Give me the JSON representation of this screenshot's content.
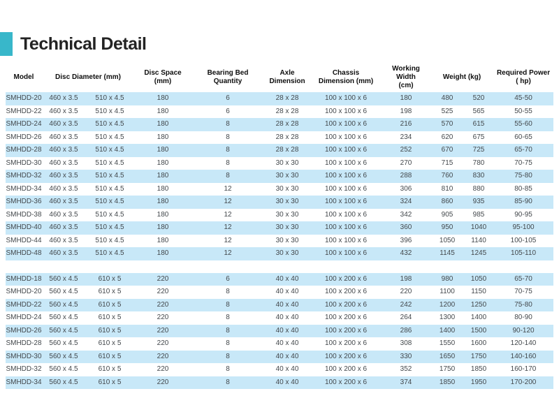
{
  "title": "Technical Detail",
  "colors": {
    "accent": "#38b7ca",
    "stripe": "#c8e8f8",
    "cell_text": "#43484c",
    "header_text": "#0d0d0d"
  },
  "table": {
    "headers": {
      "model": [
        "Model"
      ],
      "disc_diameter": [
        "Disc Diameter (mm)"
      ],
      "disc_space": [
        "Disc Space",
        "(mm)"
      ],
      "bearing_bed_quantity": [
        "Bearing Bed Quantity"
      ],
      "axle_dimension": [
        "Axle",
        "Dimension"
      ],
      "chassis_dimension": [
        "Chassis",
        "Dimension (mm)"
      ],
      "working_width": [
        "Working Width",
        "(cm)"
      ],
      "weight": [
        "Weight (kg)"
      ],
      "required_power": [
        "Required Power",
        "( hp)"
      ]
    },
    "fields": [
      "model",
      "disc_diameter_1",
      "disc_diameter_2",
      "disc_space",
      "bearing_bed_quantity",
      "axle_dimension",
      "chassis_dimension",
      "working_width",
      "weight_1",
      "weight_2",
      "required_power"
    ],
    "groups": [
      {
        "name": "group-460-series",
        "rows": [
          [
            "SMHDD-20",
            "460 x 3.5",
            "510 x 4.5",
            "180",
            "6",
            "28 x 28",
            "100 x 100 x 6",
            "180",
            "480",
            "520",
            "45-50"
          ],
          [
            "SMHDD-22",
            "460 x 3.5",
            "510 x 4.5",
            "180",
            "6",
            "28 x 28",
            "100 x 100 x 6",
            "198",
            "525",
            "565",
            "50-55"
          ],
          [
            "SMHDD-24",
            "460 x 3.5",
            "510 x 4.5",
            "180",
            "8",
            "28 x 28",
            "100 x 100 x 6",
            "216",
            "570",
            "615",
            "55-60"
          ],
          [
            "SMHDD-26",
            "460 x 3.5",
            "510 x 4.5",
            "180",
            "8",
            "28 x 28",
            "100 x 100 x 6",
            "234",
            "620",
            "675",
            "60-65"
          ],
          [
            "SMHDD-28",
            "460 x 3.5",
            "510 x 4.5",
            "180",
            "8",
            "28 x 28",
            "100 x 100 x 6",
            "252",
            "670",
            "725",
            "65-70"
          ],
          [
            "SMHDD-30",
            "460 x 3.5",
            "510 x 4.5",
            "180",
            "8",
            "30 x 30",
            "100 x 100 x 6",
            "270",
            "715",
            "780",
            "70-75"
          ],
          [
            "SMHDD-32",
            "460 x 3.5",
            "510 x 4.5",
            "180",
            "8",
            "30 x 30",
            "100 x 100 x 6",
            "288",
            "760",
            "830",
            "75-80"
          ],
          [
            "SMHDD-34",
            "460 x 3.5",
            "510 x 4.5",
            "180",
            "12",
            "30 x 30",
            "100 x 100 x 6",
            "306",
            "810",
            "880",
            "80-85"
          ],
          [
            "SMHDD-36",
            "460 x 3.5",
            "510 x 4.5",
            "180",
            "12",
            "30 x 30",
            "100 x 100 x 6",
            "324",
            "860",
            "935",
            "85-90"
          ],
          [
            "SMHDD-38",
            "460 x 3.5",
            "510 x 4.5",
            "180",
            "12",
            "30 x 30",
            "100 x 100 x 6",
            "342",
            "905",
            "985",
            "90-95"
          ],
          [
            "SMHDD-40",
            "460 x 3.5",
            "510 x 4.5",
            "180",
            "12",
            "30 x 30",
            "100 x 100 x 6",
            "360",
            "950",
            "1040",
            "95-100"
          ],
          [
            "SMHDD-44",
            "460 x 3.5",
            "510 x 4.5",
            "180",
            "12",
            "30 x 30",
            "100 x 100 x 6",
            "396",
            "1050",
            "1140",
            "100-105"
          ],
          [
            "SMHDD-48",
            "460 x 3.5",
            "510 x 4.5",
            "180",
            "12",
            "30 x 30",
            "100 x 100 x 6",
            "432",
            "1145",
            "1245",
            "105-110"
          ]
        ]
      },
      {
        "name": "group-560-series",
        "rows": [
          [
            "SMHDD-18",
            "560 x 4.5",
            "610 x 5",
            "220",
            "6",
            "40 x 40",
            "100 x 200 x 6",
            "198",
            "980",
            "1050",
            "65-70"
          ],
          [
            "SMHDD-20",
            "560 x 4.5",
            "610 x 5",
            "220",
            "8",
            "40 x 40",
            "100 x 200 x 6",
            "220",
            "1100",
            "1150",
            "70-75"
          ],
          [
            "SMHDD-22",
            "560 x 4.5",
            "610 x 5",
            "220",
            "8",
            "40 x 40",
            "100 x 200 x 6",
            "242",
            "1200",
            "1250",
            "75-80"
          ],
          [
            "SMHDD-24",
            "560 x 4.5",
            "610 x 5",
            "220",
            "8",
            "40 x 40",
            "100 x 200 x 6",
            "264",
            "1300",
            "1400",
            "80-90"
          ],
          [
            "SMHDD-26",
            "560 x 4.5",
            "610 x 5",
            "220",
            "8",
            "40 x 40",
            "100 x 200 x 6",
            "286",
            "1400",
            "1500",
            "90-120"
          ],
          [
            "SMHDD-28",
            "560 x 4.5",
            "610 x 5",
            "220",
            "8",
            "40 x 40",
            "100 x 200 x 6",
            "308",
            "1550",
            "1600",
            "120-140"
          ],
          [
            "SMHDD-30",
            "560 x 4.5",
            "610 x 5",
            "220",
            "8",
            "40 x 40",
            "100 x 200 x 6",
            "330",
            "1650",
            "1750",
            "140-160"
          ],
          [
            "SMHDD-32",
            "560 x 4.5",
            "610 x 5",
            "220",
            "8",
            "40 x 40",
            "100 x 200 x 6",
            "352",
            "1750",
            "1850",
            "160-170"
          ],
          [
            "SMHDD-34",
            "560 x 4.5",
            "610 x 5",
            "220",
            "8",
            "40 x 40",
            "100 x 200 x 6",
            "374",
            "1850",
            "1950",
            "170-200"
          ]
        ]
      }
    ]
  }
}
